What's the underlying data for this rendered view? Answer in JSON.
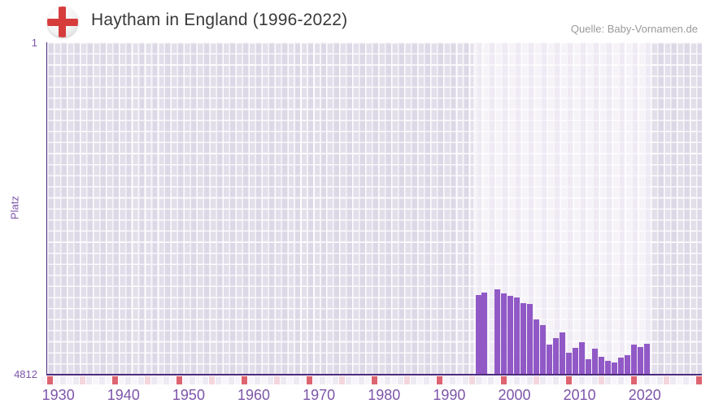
{
  "header": {
    "title": "Haytham in England (1996-2022)",
    "source": "Quelle: Baby-Vornamen.de"
  },
  "chart_data": {
    "type": "bar",
    "title": "Haytham in England (1996-2022)",
    "ylabel": "Platz",
    "y_axis": {
      "min": 1,
      "max": 4812,
      "inverted": true,
      "tick_labels": [
        "1",
        "4812"
      ]
    },
    "x_axis": {
      "start_year": 1929,
      "end_year": 2030,
      "tick_labels": [
        "1930",
        "1940",
        "1950",
        "1960",
        "1970",
        "1980",
        "1990",
        "2000",
        "2010",
        "2020"
      ],
      "decade_marker_years": [
        1930,
        1940,
        1950,
        1960,
        1970,
        1980,
        1990,
        2000,
        2010,
        2020,
        2030
      ],
      "half_decade_marker_years": [
        1935,
        1945,
        1955,
        1965,
        1975,
        1985,
        1995,
        2005,
        2015,
        2025
      ]
    },
    "highlight_years": [
      1996,
      2022
    ],
    "series": [
      {
        "name": "Haytham",
        "points": [
          {
            "year": 1996,
            "platz": 3664
          },
          {
            "year": 1997,
            "platz": 3632
          },
          {
            "year": 1999,
            "platz": 3581
          },
          {
            "year": 2000,
            "platz": 3640
          },
          {
            "year": 2001,
            "platz": 3679
          },
          {
            "year": 2002,
            "platz": 3702
          },
          {
            "year": 2003,
            "platz": 3781
          },
          {
            "year": 2004,
            "platz": 3797
          },
          {
            "year": 2005,
            "platz": 4026
          },
          {
            "year": 2006,
            "platz": 4104
          },
          {
            "year": 2007,
            "platz": 4391
          },
          {
            "year": 2008,
            "platz": 4289
          },
          {
            "year": 2009,
            "platz": 4206
          },
          {
            "year": 2010,
            "platz": 4509
          },
          {
            "year": 2011,
            "platz": 4438
          },
          {
            "year": 2012,
            "platz": 4348
          },
          {
            "year": 2013,
            "platz": 4596
          },
          {
            "year": 2014,
            "platz": 4446
          },
          {
            "year": 2015,
            "platz": 4564
          },
          {
            "year": 2016,
            "platz": 4627
          },
          {
            "year": 2017,
            "platz": 4647
          },
          {
            "year": 2018,
            "platz": 4576
          },
          {
            "year": 2019,
            "platz": 4537
          },
          {
            "year": 2020,
            "platz": 4391
          },
          {
            "year": 2021,
            "platz": 4423
          },
          {
            "year": 2022,
            "platz": 4372
          }
        ]
      }
    ]
  },
  "colors": {
    "bar": "#9159c6",
    "axis_line": "#4c2b7d",
    "tick_label": "#7d55a9",
    "decade_marker": "#dd6470",
    "half_decade_marker": "#f4d6de",
    "strip_even": "#edeaf4",
    "strip_odd": "#f7f5fb",
    "title_text": "#3a3a3a",
    "source_text": "#9a9a9a",
    "flag_cross": "#d63c3c"
  }
}
